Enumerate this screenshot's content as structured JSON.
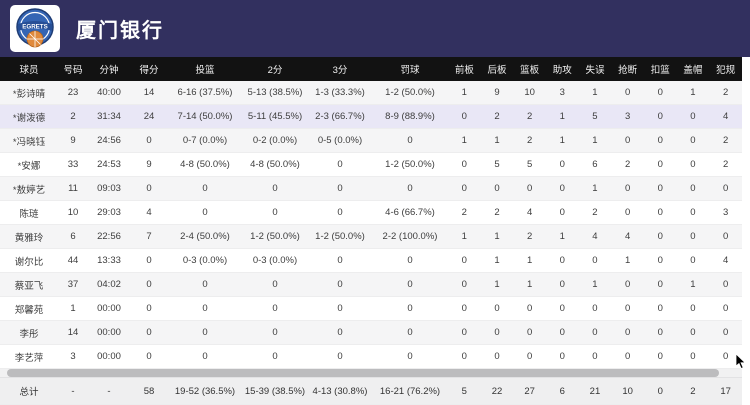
{
  "team": {
    "name": "厦门银行",
    "logo_text": "EGRETS"
  },
  "colors": {
    "topbar_bg": "#32305f",
    "table_header_bg": "#121212",
    "highlight_row_bg": "#e9e7f6",
    "stripe_row_bg": "#f5f5f6",
    "total_row_bg": "#efeff0",
    "logo_badge_blue": "#3465b4",
    "logo_ball_orange": "#e08a3c"
  },
  "table": {
    "columns": [
      "球员",
      "号码",
      "分钟",
      "得分",
      "投篮",
      "2分",
      "3分",
      "罚球",
      "前板",
      "后板",
      "篮板",
      "助攻",
      "失误",
      "抢断",
      "扣篮",
      "盖帽",
      "犯规"
    ],
    "rows": [
      {
        "highlight": false,
        "cells": [
          "*彭诗晴",
          "23",
          "40:00",
          "14",
          "6-16 (37.5%)",
          "5-13 (38.5%)",
          "1-3 (33.3%)",
          "1-2 (50.0%)",
          "1",
          "9",
          "10",
          "3",
          "1",
          "0",
          "0",
          "1",
          "2"
        ]
      },
      {
        "highlight": true,
        "cells": [
          "*谢泼德",
          "2",
          "31:34",
          "24",
          "7-14 (50.0%)",
          "5-11 (45.5%)",
          "2-3 (66.7%)",
          "8-9 (88.9%)",
          "0",
          "2",
          "2",
          "1",
          "5",
          "3",
          "0",
          "0",
          "4"
        ]
      },
      {
        "highlight": false,
        "cells": [
          "*冯晓钰",
          "9",
          "24:56",
          "0",
          "0-7 (0.0%)",
          "0-2 (0.0%)",
          "0-5 (0.0%)",
          "0",
          "1",
          "1",
          "2",
          "1",
          "1",
          "0",
          "0",
          "0",
          "2"
        ]
      },
      {
        "highlight": false,
        "cells": [
          "*安娜",
          "33",
          "24:53",
          "9",
          "4-8 (50.0%)",
          "4-8 (50.0%)",
          "0",
          "1-2 (50.0%)",
          "0",
          "5",
          "5",
          "0",
          "6",
          "2",
          "0",
          "0",
          "2"
        ]
      },
      {
        "highlight": false,
        "cells": [
          "*敖婷艺",
          "11",
          "09:03",
          "0",
          "0",
          "0",
          "0",
          "0",
          "0",
          "0",
          "0",
          "0",
          "1",
          "0",
          "0",
          "0",
          "0"
        ]
      },
      {
        "highlight": false,
        "cells": [
          "陈琏",
          "10",
          "29:03",
          "4",
          "0",
          "0",
          "0",
          "4-6 (66.7%)",
          "2",
          "2",
          "4",
          "0",
          "2",
          "0",
          "0",
          "0",
          "3"
        ]
      },
      {
        "highlight": false,
        "cells": [
          "黄雅玲",
          "6",
          "22:56",
          "7",
          "2-4 (50.0%)",
          "1-2 (50.0%)",
          "1-2 (50.0%)",
          "2-2 (100.0%)",
          "1",
          "1",
          "2",
          "1",
          "4",
          "4",
          "0",
          "0",
          "0"
        ]
      },
      {
        "highlight": false,
        "cells": [
          "谢尔比",
          "44",
          "13:33",
          "0",
          "0-3 (0.0%)",
          "0-3 (0.0%)",
          "0",
          "0",
          "0",
          "1",
          "1",
          "0",
          "0",
          "1",
          "0",
          "0",
          "4"
        ]
      },
      {
        "highlight": false,
        "cells": [
          "蔡亚飞",
          "37",
          "04:02",
          "0",
          "0",
          "0",
          "0",
          "0",
          "0",
          "1",
          "1",
          "0",
          "1",
          "0",
          "0",
          "1",
          "0"
        ]
      },
      {
        "highlight": false,
        "cells": [
          "郑馨苑",
          "1",
          "00:00",
          "0",
          "0",
          "0",
          "0",
          "0",
          "0",
          "0",
          "0",
          "0",
          "0",
          "0",
          "0",
          "0",
          "0"
        ]
      },
      {
        "highlight": false,
        "cells": [
          "李彤",
          "14",
          "00:00",
          "0",
          "0",
          "0",
          "0",
          "0",
          "0",
          "0",
          "0",
          "0",
          "0",
          "0",
          "0",
          "0",
          "0"
        ]
      },
      {
        "highlight": false,
        "cells": [
          "李艺萍",
          "3",
          "00:00",
          "0",
          "0",
          "0",
          "0",
          "0",
          "0",
          "0",
          "0",
          "0",
          "0",
          "0",
          "0",
          "0",
          "0"
        ]
      }
    ],
    "total": {
      "cells": [
        "总计",
        "-",
        "-",
        "58",
        "19-52 (36.5%)",
        "15-39 (38.5%)",
        "4-13 (30.8%)",
        "16-21 (76.2%)",
        "5",
        "22",
        "27",
        "6",
        "21",
        "10",
        "0",
        "2",
        "17"
      ]
    }
  }
}
